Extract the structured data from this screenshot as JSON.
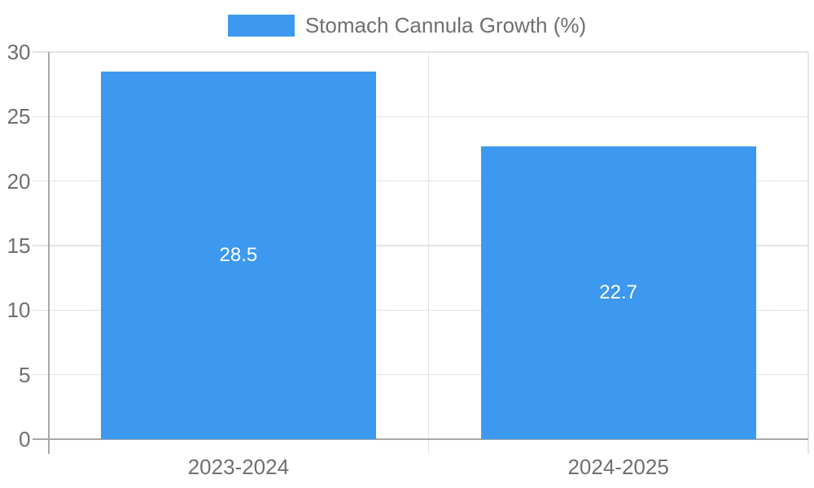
{
  "chart_data": {
    "type": "bar",
    "title": "",
    "legend_label": "Stomach Cannula Growth (%)",
    "legend_position": "top",
    "categories": [
      "2023-2024",
      "2024-2025"
    ],
    "series": [
      {
        "name": "Stomach Cannula Growth (%)",
        "values": [
          28.5,
          22.7
        ]
      }
    ],
    "value_labels": [
      "28.5",
      "22.7"
    ],
    "xlabel": "",
    "ylabel": "",
    "ylim": [
      0,
      30
    ],
    "yticks": [
      0,
      5,
      10,
      15,
      20,
      25,
      30
    ],
    "grid": true,
    "colors": {
      "bar": "#3d99ef",
      "grid": "#e4e4e4",
      "axis": "#a8a8a8",
      "tick_label": "#6f6f6f",
      "value_label": "#ffffff",
      "background": "#ffffff"
    }
  }
}
